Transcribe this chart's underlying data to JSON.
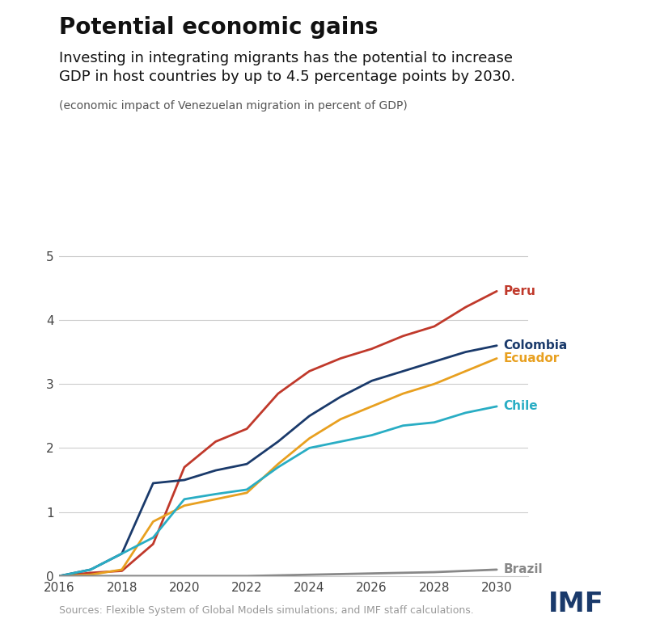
{
  "title": "Potential economic gains",
  "subtitle": "Investing in integrating migrants has the potential to increase\nGDP in host countries by up to 4.5 percentage points by 2030.",
  "subtitle_note": "(economic impact of Venezuelan migration in percent of GDP)",
  "source": "Sources: Flexible System of Global Models simulations; and IMF staff calculations.",
  "years": [
    2016,
    2017,
    2018,
    2019,
    2020,
    2021,
    2022,
    2023,
    2024,
    2025,
    2026,
    2027,
    2028,
    2029,
    2030
  ],
  "Peru": [
    0.0,
    0.05,
    0.08,
    0.5,
    1.7,
    2.1,
    2.3,
    2.85,
    3.2,
    3.4,
    3.55,
    3.75,
    3.9,
    4.2,
    4.45
  ],
  "Colombia": [
    0.0,
    0.1,
    0.35,
    1.45,
    1.5,
    1.65,
    1.75,
    2.1,
    2.5,
    2.8,
    3.05,
    3.2,
    3.35,
    3.5,
    3.6
  ],
  "Ecuador": [
    0.0,
    0.02,
    0.1,
    0.85,
    1.1,
    1.2,
    1.3,
    1.75,
    2.15,
    2.45,
    2.65,
    2.85,
    3.0,
    3.2,
    3.4
  ],
  "Chile": [
    0.0,
    0.1,
    0.35,
    0.6,
    1.2,
    1.28,
    1.35,
    1.7,
    2.0,
    2.1,
    2.2,
    2.35,
    2.4,
    2.55,
    2.65
  ],
  "Brazil": [
    0.0,
    0.0,
    0.0,
    0.0,
    0.0,
    0.0,
    0.0,
    0.01,
    0.02,
    0.03,
    0.04,
    0.05,
    0.06,
    0.08,
    0.1
  ],
  "colors": {
    "Peru": "#c0392b",
    "Colombia": "#1a3a6b",
    "Ecuador": "#e8a020",
    "Chile": "#29adc4",
    "Brazil": "#888888"
  },
  "label_colors": {
    "Peru": "#c0392b",
    "Colombia": "#1a3a6b",
    "Ecuador": "#e8a020",
    "Chile": "#29adc4",
    "Brazil": "#888888"
  },
  "ylim": [
    0,
    5.2
  ],
  "yticks": [
    0,
    1,
    2,
    3,
    4,
    5
  ],
  "xlim": [
    2016,
    2031
  ],
  "xticks": [
    2016,
    2018,
    2020,
    2022,
    2024,
    2026,
    2028,
    2030
  ],
  "background_color": "#ffffff",
  "imf_color": "#1a3a6b",
  "line_width": 2.0
}
